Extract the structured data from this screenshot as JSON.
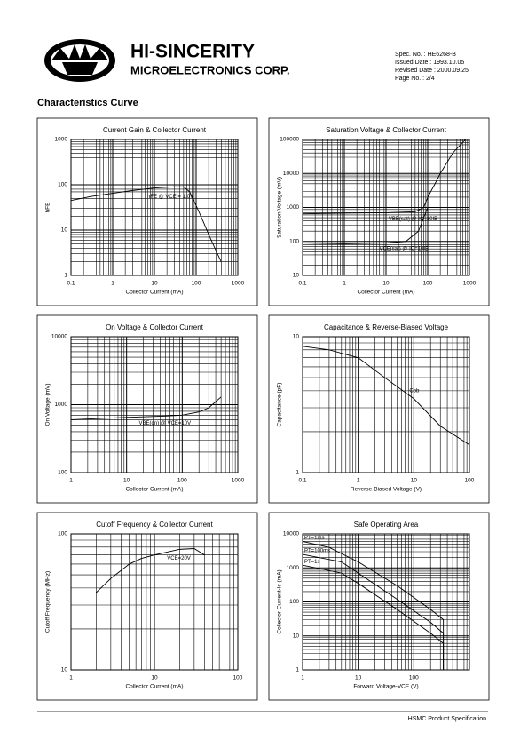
{
  "header": {
    "company": "HI-SINCERITY",
    "division": "MICROELECTRONICS CORP.",
    "spec": [
      "Spec. No. : HE6268-B",
      "Issued Date : 1993.10.05",
      "Revised Date : 2000.09.25",
      "Page No. : 2/4"
    ]
  },
  "section_title": "Characteristics Curve",
  "footer": "HSMC Product Specification",
  "chart_data": [
    {
      "type": "line",
      "title": "Current Gain & Collector Current",
      "x_label": "Collector Current (mA)",
      "y_label": "hFE",
      "log_x": true,
      "log_y": true,
      "grid": true,
      "xlim": [
        0.1,
        1000
      ],
      "ylim": [
        1,
        1000
      ],
      "xticks": [
        0.1,
        1,
        10,
        100,
        1000
      ],
      "yticks": [
        1,
        10,
        100,
        1000
      ],
      "series": [
        {
          "name": "hFE @ VCE = 1.0V",
          "color": "#000000",
          "x": [
            0.1,
            0.3,
            1,
            3,
            10,
            30,
            50,
            70,
            100,
            150,
            200,
            300,
            400
          ],
          "values": [
            45,
            55,
            65,
            75,
            85,
            90,
            90,
            70,
            35,
            15,
            8,
            3.5,
            2
          ]
        }
      ]
    },
    {
      "type": "line",
      "title": "Saturation Voltage & Collector Current",
      "x_label": "Collector Current (mA)",
      "y_label": "Saturation Voltage (mV)",
      "log_x": true,
      "log_y": true,
      "grid": true,
      "xlim": [
        0.1,
        1000
      ],
      "ylim": [
        10,
        100000
      ],
      "xticks": [
        0.1,
        1,
        10,
        100,
        1000
      ],
      "yticks": [
        10,
        100,
        1000,
        10000,
        100000
      ],
      "series": [
        {
          "name": "VBE(sat) @ IC=10IB",
          "color": "#000000",
          "x": [
            0.1,
            1,
            10,
            50,
            80,
            100,
            150,
            200,
            400,
            800
          ],
          "values": [
            650,
            680,
            700,
            750,
            1000,
            2000,
            5000,
            10000,
            40000,
            100000
          ]
        },
        {
          "name": "VCE(sat) @ IC=10IB",
          "color": "#000000",
          "x": [
            0.1,
            1,
            10,
            30,
            60,
            80,
            100
          ],
          "values": [
            90,
            85,
            90,
            100,
            200,
            500,
            1000
          ]
        }
      ]
    },
    {
      "type": "line",
      "title": "On Voltage & Collector Current",
      "x_label": "Collector Current (mA)",
      "y_label": "On Voltage (mV)",
      "log_x": true,
      "log_y": true,
      "grid": true,
      "xlim": [
        1,
        1000
      ],
      "ylim": [
        100,
        10000
      ],
      "xticks": [
        1,
        10,
        100,
        1000
      ],
      "yticks": [
        100,
        1000,
        10000
      ],
      "series": [
        {
          "name": "VBE(on) @ VCE=10V",
          "color": "#000000",
          "x": [
            1,
            10,
            50,
            100,
            200,
            300,
            500
          ],
          "values": [
            600,
            650,
            680,
            700,
            780,
            900,
            1300
          ]
        }
      ]
    },
    {
      "type": "line",
      "title": "Capacitance & Reverse-Biased Voltage",
      "x_label": "Reverse-Biased Voltage (V)",
      "y_label": "Capacitance (pF)",
      "log_x": true,
      "log_y": true,
      "grid": true,
      "xlim": [
        0.1,
        100
      ],
      "ylim": [
        1,
        10
      ],
      "xticks": [
        0.1,
        1,
        10,
        100
      ],
      "yticks": [
        1,
        10
      ],
      "series": [
        {
          "name": "Cob",
          "color": "#000000",
          "x": [
            0.1,
            0.3,
            1,
            3,
            10,
            30,
            100
          ],
          "values": [
            8.5,
            8,
            7,
            5,
            3.5,
            2.2,
            1.6
          ]
        }
      ]
    },
    {
      "type": "line",
      "title": "Cutoff Frequency & Collector Current",
      "x_label": "Collector Current (mA)",
      "y_label": "Cutoff Frequency (MHz)",
      "log_x": true,
      "log_y": true,
      "grid": true,
      "xlim": [
        1,
        100
      ],
      "ylim": [
        10,
        100
      ],
      "xticks": [
        1,
        10,
        100
      ],
      "yticks": [
        10,
        100
      ],
      "series": [
        {
          "name": "VCE=20V",
          "color": "#000000",
          "x": [
            2,
            3,
            5,
            7,
            10,
            20,
            30,
            40
          ],
          "values": [
            37,
            47,
            60,
            66,
            70,
            77,
            78,
            70
          ]
        }
      ]
    },
    {
      "type": "line",
      "title": "Safe Operating Area",
      "x_label": "Forward Voltage-VCE (V)",
      "y_label": "Collector Current-Ic (mA)",
      "log_x": true,
      "log_y": true,
      "grid": true,
      "xlim": [
        1,
        1000
      ],
      "ylim": [
        1,
        10000
      ],
      "xticks": [
        1,
        10,
        100
      ],
      "yticks": [
        1,
        10,
        100,
        1000,
        10000
      ],
      "series": [
        {
          "name": "PT=1ms",
          "color": "#000000",
          "x": [
            1,
            3,
            10,
            50,
            200,
            340,
            340
          ],
          "values": [
            6000,
            4000,
            1500,
            300,
            60,
            30,
            1
          ]
        },
        {
          "name": "PT=100ms",
          "color": "#000000",
          "x": [
            1,
            5,
            10,
            50,
            200,
            340,
            340
          ],
          "values": [
            2500,
            1500,
            700,
            120,
            25,
            12,
            1
          ]
        },
        {
          "name": "PT=1s",
          "color": "#000000",
          "x": [
            1,
            5,
            10,
            50,
            200,
            340,
            340
          ],
          "values": [
            1200,
            700,
            350,
            60,
            12,
            6,
            1
          ]
        }
      ]
    }
  ]
}
